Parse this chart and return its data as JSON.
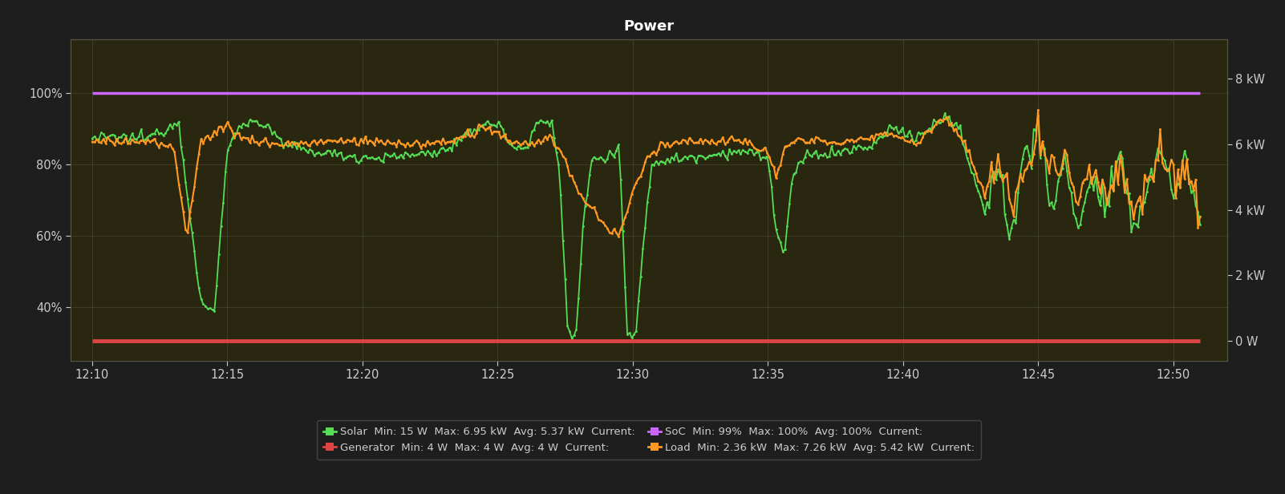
{
  "title": "Power",
  "bg_color": "#1e1e1e",
  "plot_bg_color": "#2a2710",
  "grid_color": "#444430",
  "title_color": "#ffffff",
  "tick_color": "#cccccc",
  "time_labels": [
    "12:10",
    "12:15",
    "12:20",
    "12:25",
    "12:30",
    "12:35",
    "12:40",
    "12:45",
    "12:50"
  ],
  "left_yticks": [
    40,
    60,
    80,
    100
  ],
  "left_ytick_labels": [
    "40%",
    "60%",
    "80%",
    "100%"
  ],
  "right_yticks": [
    0,
    2000,
    4000,
    6000,
    8000
  ],
  "right_ytick_labels": [
    "0 W",
    "2 kW",
    "4 kW",
    "6 kW",
    "8 kW"
  ],
  "soc_color": "#cc66ff",
  "solar_color": "#55dd55",
  "load_color": "#ff9922",
  "generator_color": "#dd4444",
  "legend_row1_left": "Solar  Min: 15 W  Max: 6.95 kW  Avg: 5.37 kW  Current:",
  "legend_row1_right": "Generator  Min: 4 W  Max: 4 W  Avg: 4 W  Current:",
  "legend_row2_left": "SoC  Min: 99%  Max: 100%  Avg: 100%  Current:",
  "legend_row2_right": "Load  Min: 2.36 kW  Max: 7.26 kW  Avg: 5.42 kW  Current:"
}
